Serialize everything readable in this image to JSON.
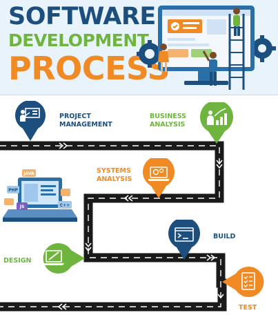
{
  "title": {
    "line1": "SOFTWARE",
    "line2": "DEVELOPMENT",
    "line3": "PROCESS"
  },
  "colors": {
    "navy": "#1c4f7d",
    "green": "#6eb43f",
    "orange": "#f08a24",
    "road": "#1a1a1a",
    "top_bg": "#e9f3fb"
  },
  "steps": [
    {
      "label": "PROJECT\nMANAGEMENT",
      "color": "navy",
      "icon": "presentation-icon"
    },
    {
      "label": "BUSINESS\nANALYSIS",
      "color": "green",
      "icon": "growth-chart-icon"
    },
    {
      "label": "SYSTEMS\nANALYSIS",
      "color": "orange",
      "icon": "laptop-settings-icon"
    },
    {
      "label": "BUILD",
      "color": "navy",
      "icon": "terminal-icon"
    },
    {
      "label": "DESIGN",
      "color": "green",
      "icon": "design-screen-icon"
    },
    {
      "label": "TEST",
      "color": "orange",
      "icon": "checklist-icon"
    }
  ],
  "laptop_tags": [
    "JAVA",
    "PHP",
    "JS",
    "C++"
  ]
}
